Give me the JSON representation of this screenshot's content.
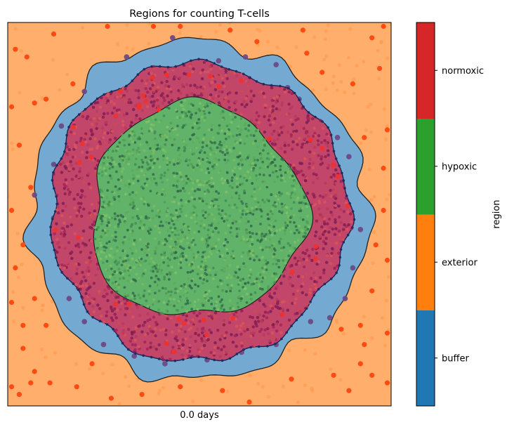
{
  "chart_data": {
    "type": "scatter",
    "title": "Regions for counting T-cells",
    "xlabel": "0.0 days",
    "ylabel": "",
    "grid": false,
    "legend": "none",
    "regions": [
      {
        "name": "exterior",
        "color": "#ff7f0e"
      },
      {
        "name": "buffer",
        "color": "#1f77b4"
      },
      {
        "name": "normoxic",
        "color": "#d62728"
      },
      {
        "name": "hypoxic",
        "color": "#2ca02c"
      }
    ],
    "colorbar": {
      "label": "region",
      "categories": [
        "buffer",
        "exterior",
        "hypoxic",
        "normoxic"
      ],
      "colors": [
        "#1f77b4",
        "#ff7f0e",
        "#2ca02c",
        "#d62728"
      ]
    },
    "tcells_exterior": [
      [
        0.02,
        0.07
      ],
      [
        0.05,
        0.09
      ],
      [
        0.17,
        0.16
      ],
      [
        0.26,
        0.01
      ],
      [
        0.45,
        0.01
      ],
      [
        0.58,
        0.02
      ],
      [
        0.77,
        0.02
      ],
      [
        0.95,
        0.04
      ],
      [
        0.98,
        0.01
      ],
      [
        0.82,
        0.13
      ],
      [
        0.9,
        0.16
      ],
      [
        0.93,
        0.3
      ],
      [
        0.99,
        0.28
      ],
      [
        0.01,
        0.22
      ],
      [
        0.03,
        0.32
      ],
      [
        0.07,
        0.21
      ],
      [
        0.04,
        0.58
      ],
      [
        0.01,
        0.49
      ],
      [
        0.98,
        0.49
      ],
      [
        0.99,
        0.62
      ],
      [
        0.96,
        0.58
      ],
      [
        0.02,
        0.64
      ],
      [
        0.07,
        0.72
      ],
      [
        0.04,
        0.79
      ],
      [
        0.1,
        0.79
      ],
      [
        0.95,
        0.7
      ],
      [
        0.87,
        0.8
      ],
      [
        0.92,
        0.79
      ],
      [
        0.99,
        0.81
      ],
      [
        0.93,
        0.84
      ],
      [
        0.04,
        0.85
      ],
      [
        0.07,
        0.91
      ],
      [
        0.06,
        0.94
      ],
      [
        0.11,
        0.94
      ],
      [
        0.22,
        0.89
      ],
      [
        0.18,
        0.95
      ],
      [
        0.45,
        0.95
      ],
      [
        0.56,
        0.96
      ],
      [
        0.63,
        0.99
      ],
      [
        0.74,
        0.93
      ],
      [
        0.85,
        0.92
      ],
      [
        0.92,
        0.89
      ],
      [
        0.95,
        0.92
      ],
      [
        0.99,
        0.94
      ],
      [
        0.01,
        0.95
      ],
      [
        0.03,
        0.97
      ],
      [
        0.78,
        0.08
      ],
      [
        0.65,
        0.05
      ],
      [
        0.38,
        0.01
      ],
      [
        0.12,
        0.03
      ],
      [
        0.1,
        0.2
      ],
      [
        0.97,
        0.12
      ],
      [
        0.06,
        0.43
      ],
      [
        0.98,
        0.38
      ],
      [
        0.89,
        0.96
      ],
      [
        0.35,
        0.97
      ],
      [
        0.27,
        0.98
      ],
      [
        0.01,
        0.73
      ]
    ],
    "tcells_buffer": [
      [
        0.31,
        0.09
      ],
      [
        0.43,
        0.04
      ],
      [
        0.62,
        0.09
      ],
      [
        0.7,
        0.11
      ],
      [
        0.73,
        0.17
      ],
      [
        0.76,
        0.2
      ],
      [
        0.14,
        0.27
      ],
      [
        0.12,
        0.37
      ],
      [
        0.07,
        0.45
      ],
      [
        0.89,
        0.35
      ],
      [
        0.92,
        0.54
      ],
      [
        0.9,
        0.64
      ],
      [
        0.88,
        0.72
      ],
      [
        0.84,
        0.77
      ],
      [
        0.14,
        0.63
      ],
      [
        0.16,
        0.72
      ],
      [
        0.25,
        0.84
      ],
      [
        0.33,
        0.87
      ],
      [
        0.52,
        0.88
      ],
      [
        0.61,
        0.86
      ],
      [
        0.7,
        0.84
      ],
      [
        0.79,
        0.78
      ],
      [
        0.12,
        0.51
      ],
      [
        0.2,
        0.78
      ],
      [
        0.41,
        0.89
      ],
      [
        0.55,
        0.1
      ],
      [
        0.2,
        0.18
      ],
      [
        0.86,
        0.3
      ]
    ]
  }
}
